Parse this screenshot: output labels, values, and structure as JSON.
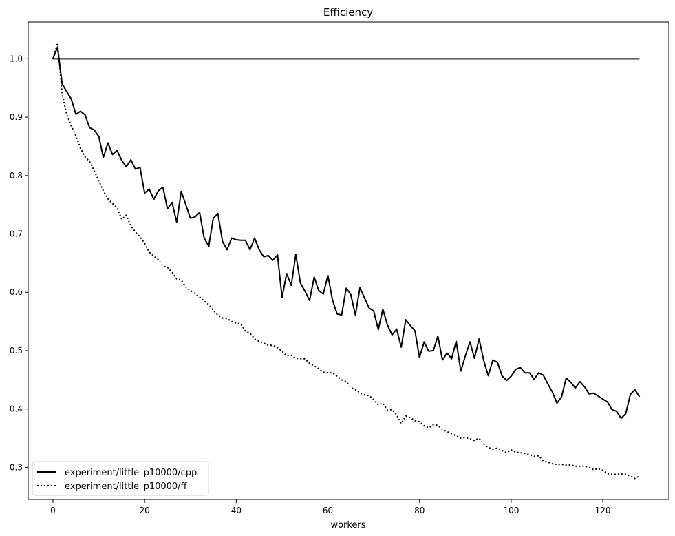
{
  "chart_data": {
    "type": "line",
    "title": "Efficiency",
    "xlabel": "workers",
    "ylabel": "",
    "xlim": [
      -5.4,
      134.4
    ],
    "ylim": [
      0.245,
      1.063
    ],
    "x_ticks": [
      0,
      20,
      40,
      60,
      80,
      100,
      120
    ],
    "y_ticks": [
      0.3,
      0.4,
      0.5,
      0.6,
      0.7,
      0.8,
      0.9,
      1.0
    ],
    "x_tick_labels": [
      "0",
      "20",
      "40",
      "60",
      "80",
      "100",
      "120"
    ],
    "y_tick_labels": [
      "0.3",
      "0.4",
      "0.5",
      "0.6",
      "0.7",
      "0.8",
      "0.9",
      "1.0"
    ],
    "grid": false,
    "legend_position": "bottom-left",
    "series": [
      {
        "name": "",
        "style": "solid",
        "color": "#000000",
        "x": [
          0,
          128
        ],
        "y": [
          1.0,
          1.0
        ]
      },
      {
        "name": "experiment/little_p10000/cpp",
        "style": "solid",
        "color": "#000000",
        "x": [
          0,
          1,
          2,
          3,
          4,
          5,
          6,
          7,
          8,
          9,
          10,
          11,
          12,
          13,
          14,
          15,
          16,
          17,
          18,
          19,
          20,
          21,
          22,
          23,
          24,
          25,
          26,
          27,
          28,
          29,
          30,
          31,
          32,
          33,
          34,
          35,
          36,
          37,
          38,
          39,
          40,
          41,
          42,
          43,
          44,
          45,
          46,
          47,
          48,
          49,
          50,
          51,
          52,
          53,
          54,
          55,
          56,
          57,
          58,
          59,
          60,
          61,
          62,
          63,
          64,
          65,
          66,
          67,
          68,
          69,
          70,
          71,
          72,
          73,
          74,
          75,
          76,
          77,
          78,
          79,
          80,
          81,
          82,
          83,
          84,
          85,
          86,
          87,
          88,
          89,
          90,
          91,
          92,
          93,
          94,
          95,
          96,
          97,
          98,
          99,
          100,
          101,
          102,
          103,
          104,
          105,
          106,
          107,
          108,
          109,
          110,
          111,
          112,
          113,
          114,
          115,
          116,
          117,
          118,
          119,
          120,
          121,
          122,
          123,
          124,
          125,
          126,
          127,
          128
        ],
        "y": [
          1.0,
          1.02,
          0.957,
          0.944,
          0.931,
          0.905,
          0.91,
          0.904,
          0.882,
          0.878,
          0.867,
          0.831,
          0.856,
          0.836,
          0.843,
          0.826,
          0.815,
          0.827,
          0.811,
          0.814,
          0.77,
          0.777,
          0.759,
          0.774,
          0.78,
          0.743,
          0.754,
          0.72,
          0.773,
          0.75,
          0.727,
          0.729,
          0.737,
          0.693,
          0.679,
          0.727,
          0.735,
          0.687,
          0.673,
          0.693,
          0.69,
          0.689,
          0.689,
          0.673,
          0.693,
          0.673,
          0.661,
          0.663,
          0.655,
          0.664,
          0.591,
          0.632,
          0.612,
          0.665,
          0.616,
          0.602,
          0.586,
          0.626,
          0.603,
          0.597,
          0.629,
          0.587,
          0.563,
          0.561,
          0.607,
          0.596,
          0.561,
          0.608,
          0.59,
          0.573,
          0.568,
          0.536,
          0.571,
          0.544,
          0.527,
          0.537,
          0.506,
          0.553,
          0.543,
          0.534,
          0.488,
          0.515,
          0.499,
          0.5,
          0.525,
          0.484,
          0.496,
          0.486,
          0.516,
          0.465,
          0.491,
          0.515,
          0.487,
          0.52,
          0.483,
          0.457,
          0.484,
          0.48,
          0.457,
          0.449,
          0.456,
          0.468,
          0.471,
          0.462,
          0.462,
          0.451,
          0.462,
          0.458,
          0.443,
          0.429,
          0.41,
          0.421,
          0.453,
          0.446,
          0.436,
          0.447,
          0.438,
          0.426,
          0.427,
          0.422,
          0.417,
          0.412,
          0.399,
          0.396,
          0.384,
          0.392,
          0.425,
          0.433,
          0.421
        ]
      },
      {
        "name": "experiment/little_p10000/ff",
        "style": "dotted",
        "color": "#000000",
        "x": [
          0,
          1,
          2,
          3,
          4,
          5,
          6,
          7,
          8,
          9,
          10,
          11,
          12,
          13,
          14,
          15,
          16,
          17,
          18,
          19,
          20,
          21,
          22,
          23,
          24,
          25,
          26,
          27,
          28,
          29,
          30,
          31,
          32,
          33,
          34,
          35,
          36,
          37,
          38,
          39,
          40,
          41,
          42,
          43,
          44,
          45,
          46,
          47,
          48,
          49,
          50,
          51,
          52,
          53,
          54,
          55,
          56,
          57,
          58,
          59,
          60,
          61,
          62,
          63,
          64,
          65,
          66,
          67,
          68,
          69,
          70,
          71,
          72,
          73,
          74,
          75,
          76,
          77,
          78,
          79,
          80,
          81,
          82,
          83,
          84,
          85,
          86,
          87,
          88,
          89,
          90,
          91,
          92,
          93,
          94,
          95,
          96,
          97,
          98,
          99,
          100,
          101,
          102,
          103,
          104,
          105,
          106,
          107,
          108,
          109,
          110,
          111,
          112,
          113,
          114,
          115,
          116,
          117,
          118,
          119,
          120,
          121,
          122,
          123,
          124,
          125,
          126,
          127,
          128
        ],
        "y": [
          1.0,
          1.027,
          0.94,
          0.905,
          0.885,
          0.868,
          0.847,
          0.832,
          0.824,
          0.808,
          0.791,
          0.774,
          0.76,
          0.752,
          0.745,
          0.725,
          0.732,
          0.714,
          0.703,
          0.695,
          0.684,
          0.669,
          0.662,
          0.656,
          0.645,
          0.643,
          0.634,
          0.623,
          0.621,
          0.609,
          0.603,
          0.598,
          0.592,
          0.585,
          0.579,
          0.569,
          0.561,
          0.556,
          0.555,
          0.55,
          0.547,
          0.546,
          0.533,
          0.53,
          0.52,
          0.516,
          0.513,
          0.509,
          0.509,
          0.505,
          0.499,
          0.491,
          0.492,
          0.487,
          0.486,
          0.486,
          0.478,
          0.474,
          0.469,
          0.463,
          0.462,
          0.462,
          0.456,
          0.45,
          0.447,
          0.437,
          0.433,
          0.428,
          0.424,
          0.423,
          0.416,
          0.407,
          0.41,
          0.398,
          0.399,
          0.39,
          0.375,
          0.388,
          0.385,
          0.38,
          0.378,
          0.371,
          0.368,
          0.373,
          0.372,
          0.365,
          0.361,
          0.358,
          0.354,
          0.35,
          0.351,
          0.349,
          0.346,
          0.35,
          0.34,
          0.334,
          0.331,
          0.333,
          0.329,
          0.325,
          0.33,
          0.326,
          0.325,
          0.324,
          0.322,
          0.319,
          0.32,
          0.311,
          0.309,
          0.306,
          0.305,
          0.305,
          0.304,
          0.304,
          0.302,
          0.302,
          0.302,
          0.3,
          0.296,
          0.298,
          0.295,
          0.289,
          0.288,
          0.288,
          0.289,
          0.288,
          0.285,
          0.281,
          0.285
        ]
      }
    ]
  }
}
